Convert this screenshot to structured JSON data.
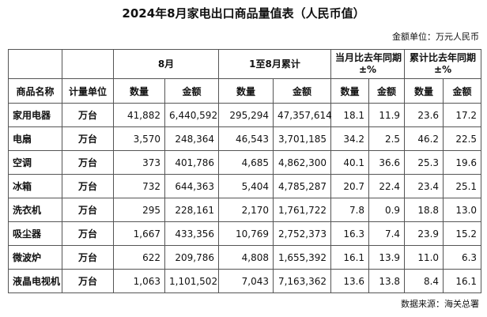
{
  "title": "2024年8月家电出口商品量值表（人民币值）",
  "unit_note": "金额单位：万元人民币",
  "source": "数据来源：海关总署",
  "table": {
    "groups": [
      [
        "8月"
      ],
      [
        "1至8月累计"
      ],
      [
        "当月比去年同期",
        "±%"
      ],
      [
        "累计比去年同期",
        "±%"
      ]
    ],
    "columns": [
      "商品名称",
      "计量单位",
      "数量",
      "金额",
      "数量",
      "金额",
      "数量",
      "金额",
      "数量",
      "金额"
    ],
    "rows": [
      [
        "家用电器",
        "万台",
        "41,882",
        "6,440,592",
        "295,294",
        "47,357,614",
        "18.1",
        "11.9",
        "23.6",
        "17.2"
      ],
      [
        "电扇",
        "万台",
        "3,570",
        "248,364",
        "46,543",
        "3,701,185",
        "34.2",
        "2.5",
        "46.2",
        "22.5"
      ],
      [
        "空调",
        "万台",
        "373",
        "401,786",
        "4,685",
        "4,862,300",
        "40.1",
        "36.6",
        "25.3",
        "19.6"
      ],
      [
        "冰箱",
        "万台",
        "732",
        "644,363",
        "5,404",
        "4,785,287",
        "20.7",
        "22.4",
        "23.4",
        "25.1"
      ],
      [
        "洗衣机",
        "万台",
        "295",
        "228,161",
        "2,170",
        "1,761,722",
        "7.8",
        "0.9",
        "18.8",
        "13.0"
      ],
      [
        "吸尘器",
        "万台",
        "1,667",
        "433,356",
        "10,769",
        "2,752,373",
        "16.3",
        "7.4",
        "23.9",
        "15.2"
      ],
      [
        "微波炉",
        "万台",
        "622",
        "209,786",
        "4,808",
        "1,655,392",
        "16.1",
        "13.9",
        "11.0",
        "6.3"
      ],
      [
        "液晶电视机",
        "万台",
        "1,063",
        "1,101,502",
        "7,043",
        "7,163,362",
        "13.6",
        "13.8",
        "8.4",
        "16.1"
      ]
    ]
  }
}
